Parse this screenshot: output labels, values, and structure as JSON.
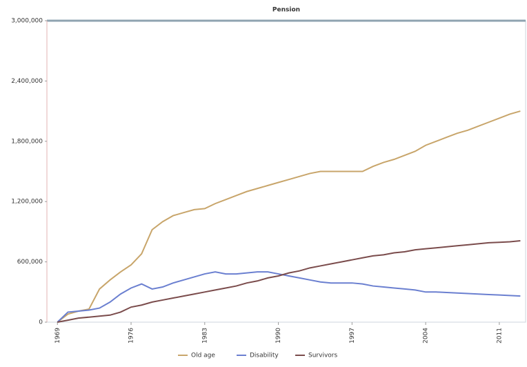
{
  "chart_data": {
    "type": "line",
    "title": "Pension",
    "x": [
      1969,
      1970,
      1971,
      1972,
      1973,
      1974,
      1975,
      1976,
      1977,
      1978,
      1979,
      1980,
      1981,
      1982,
      1983,
      1984,
      1985,
      1986,
      1987,
      1988,
      1989,
      1990,
      1991,
      1992,
      1993,
      1994,
      1995,
      1996,
      1997,
      1998,
      1999,
      2000,
      2001,
      2002,
      2003,
      2004,
      2005,
      2006,
      2007,
      2008,
      2009,
      2010,
      2011,
      2012,
      2013
    ],
    "series": [
      {
        "name": "Old age",
        "color": "#c8a56a",
        "values": [
          0,
          80000,
          110000,
          130000,
          330000,
          420000,
          500000,
          570000,
          680000,
          920000,
          1000000,
          1060000,
          1090000,
          1120000,
          1130000,
          1180000,
          1220000,
          1260000,
          1300000,
          1330000,
          1360000,
          1390000,
          1420000,
          1450000,
          1480000,
          1500000,
          1500000,
          1500000,
          1500000,
          1500000,
          1550000,
          1590000,
          1620000,
          1660000,
          1700000,
          1760000,
          1800000,
          1840000,
          1880000,
          1910000,
          1950000,
          1990000,
          2030000,
          2070000,
          2100000
        ]
      },
      {
        "name": "Disability",
        "color": "#6a7fd0",
        "values": [
          0,
          100000,
          110000,
          120000,
          140000,
          200000,
          280000,
          340000,
          380000,
          330000,
          350000,
          390000,
          420000,
          450000,
          480000,
          500000,
          480000,
          480000,
          490000,
          500000,
          500000,
          480000,
          460000,
          440000,
          420000,
          400000,
          390000,
          390000,
          390000,
          380000,
          360000,
          350000,
          340000,
          330000,
          320000,
          300000,
          300000,
          295000,
          290000,
          285000,
          280000,
          275000,
          270000,
          265000,
          260000
        ]
      },
      {
        "name": "Survivors",
        "color": "#7a4b4b",
        "values": [
          0,
          20000,
          40000,
          50000,
          60000,
          70000,
          100000,
          150000,
          170000,
          200000,
          220000,
          240000,
          260000,
          280000,
          300000,
          320000,
          340000,
          360000,
          390000,
          410000,
          440000,
          460000,
          490000,
          510000,
          540000,
          560000,
          580000,
          600000,
          620000,
          640000,
          660000,
          670000,
          690000,
          700000,
          720000,
          730000,
          740000,
          750000,
          760000,
          770000,
          780000,
          790000,
          795000,
          800000,
          810000
        ]
      }
    ],
    "xlim": [
      1968,
      2013.5
    ],
    "xticks": [
      1969,
      1976,
      1983,
      1990,
      1997,
      2004,
      2011
    ],
    "ylim": [
      0,
      3000000
    ],
    "yticks": [
      0,
      {
        "value": 600000,
        "label": "600,000"
      },
      {
        "value": 1200000,
        "label": "1,200,000"
      },
      {
        "value": 1800000,
        "label": "1,800,000"
      },
      {
        "value": 2400000,
        "label": "2,400,000"
      },
      {
        "value": 3000000,
        "label": "3,000,000"
      }
    ],
    "legend": "bottom"
  }
}
